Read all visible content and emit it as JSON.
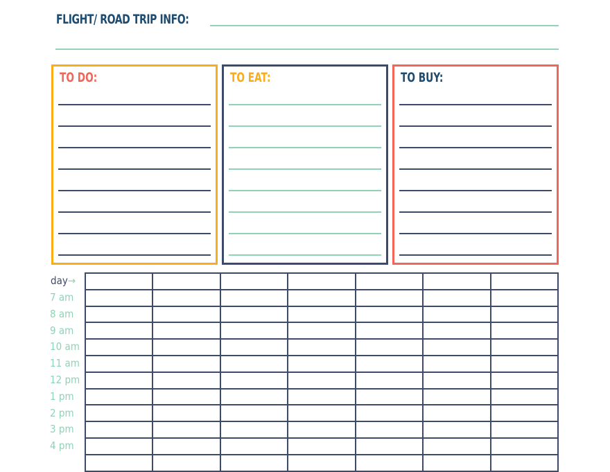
{
  "header": {
    "title": "FLIGHT/ ROAD TRIP INFO:"
  },
  "lists": [
    {
      "label": "TO DO:",
      "border_color": "#f9ad19",
      "label_color": "#f2665a",
      "line_color": "#3e4a6a",
      "lines": 8
    },
    {
      "label": "TO EAT:",
      "border_color": "#3e4a6a",
      "label_color": "#f9ad19",
      "line_color": "#8fd3b6",
      "lines": 8
    },
    {
      "label": "TO BUY:",
      "border_color": "#f2665a",
      "label_color": "#1d4c70",
      "line_color": "#3e4a6a",
      "lines": 8
    }
  ],
  "schedule": {
    "day_label": "day",
    "arrow_icon": "arrow-right-icon",
    "times": [
      "7 am",
      "8 am",
      "9 am",
      "10 am",
      "11 am",
      "12 pm",
      "1 pm",
      "2 pm",
      "3 pm",
      "4 pm"
    ],
    "columns": 7
  },
  "colors": {
    "teal": "#8fd3b6",
    "navy": "#3e4a6a",
    "title": "#1d4c70"
  }
}
